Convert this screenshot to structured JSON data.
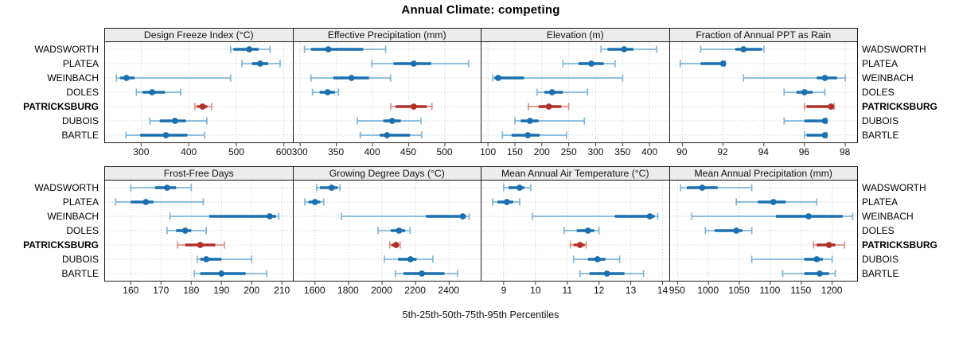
{
  "title": "Annual Climate: competing",
  "caption": "5th-25th-50th-75th-95th Percentiles",
  "stations": [
    "WADSWORTH",
    "PLATEA",
    "WEINBACH",
    "DOLES",
    "PATRICKSBURG",
    "DUBOIS",
    "BARTLE"
  ],
  "highlighted_station": "PATRICKSBURG",
  "colors": {
    "normal_dark": "#1a6faf",
    "normal_light": "#7eb6d9",
    "highlight_dark": "#b03028",
    "highlight_light": "#dd9089",
    "strip_bg": "#ececec",
    "panel_border": "#1a1a1a",
    "grid": "#c6c6c6"
  },
  "chart_data": {
    "type": "trellis-percentile-dotplot",
    "percentiles": [
      5,
      25,
      50,
      75,
      95
    ],
    "legend_note": "dot = 50th percentile, thick bar = 25th-75th, thin whisker with caps = 5th-95th",
    "grid": "dotted",
    "layout": {
      "rows": 2,
      "cols": 4
    },
    "panels": [
      {
        "title": "Design Freeze Index (°C)",
        "row": 0,
        "col": 0,
        "xlim": [
          224,
          618
        ],
        "ticks": [
          300,
          400,
          500,
          600
        ],
        "values": {
          "WADSWORTH": [
            488,
            494,
            527,
            547,
            571
          ],
          "PLATEA": [
            512,
            533,
            550,
            567,
            592
          ],
          "WEINBACH": [
            248,
            256,
            269,
            286,
            488
          ],
          "DOLES": [
            290,
            303,
            323,
            350,
            383
          ],
          "PATRICKSBURG": [
            413,
            417,
            429,
            439,
            448
          ],
          "DUBOIS": [
            318,
            339,
            371,
            394,
            438
          ],
          "BARTLE": [
            268,
            298,
            352,
            397,
            433
          ]
        }
      },
      {
        "title": "Effective Precipitation (mm)",
        "row": 0,
        "col": 1,
        "xlim": [
          291,
          550
        ],
        "ticks": [
          300,
          350,
          400,
          450,
          500
        ],
        "values": {
          "WADSWORTH": [
            306,
            315,
            339,
            387,
            418
          ],
          "PLATEA": [
            399,
            429,
            457,
            481,
            533
          ],
          "WEINBACH": [
            315,
            346,
            371,
            395,
            425
          ],
          "DOLES": [
            317,
            327,
            338,
            348,
            353
          ],
          "PATRICKSBURG": [
            425,
            432,
            457,
            475,
            482
          ],
          "DUBOIS": [
            379,
            415,
            427,
            439,
            467
          ],
          "BARTLE": [
            383,
            410,
            420,
            452,
            468
          ]
        }
      },
      {
        "title": "Elevation (m)",
        "row": 0,
        "col": 2,
        "xlim": [
          88,
          436
        ],
        "ticks": [
          100,
          150,
          200,
          250,
          300,
          350,
          400
        ],
        "values": {
          "WADSWORTH": [
            310,
            322,
            353,
            370,
            413
          ],
          "PLATEA": [
            239,
            268,
            292,
            315,
            336
          ],
          "WEINBACH": [
            109,
            112,
            119,
            167,
            350
          ],
          "DOLES": [
            191,
            205,
            219,
            239,
            285
          ],
          "PATRICKSBURG": [
            175,
            194,
            213,
            236,
            250
          ],
          "DUBOIS": [
            150,
            161,
            178,
            194,
            279
          ],
          "BARTLE": [
            127,
            144,
            174,
            196,
            246
          ]
        }
      },
      {
        "title": "Fraction of Annual PPT as Rain",
        "row": 0,
        "col": 3,
        "xlim": [
          89.4,
          98.6
        ],
        "ticks": [
          90,
          92,
          94,
          96,
          98
        ],
        "values": {
          "WADSWORTH": [
            90.9,
            92.6,
            93.0,
            93.9,
            94.0
          ],
          "PLATEA": [
            89.9,
            90.9,
            92.0,
            92.0,
            92.1
          ],
          "WEINBACH": [
            93.0,
            96.6,
            97.0,
            97.6,
            98.0
          ],
          "DOLES": [
            95.0,
            95.6,
            96.0,
            96.4,
            97.0
          ],
          "PATRICKSBURG": [
            96.0,
            96.1,
            97.3,
            97.4,
            97.45
          ],
          "DUBOIS": [
            95.0,
            96.0,
            97.0,
            97.05,
            97.1
          ],
          "BARTLE": [
            96.0,
            96.1,
            97.0,
            97.05,
            97.1
          ]
        }
      },
      {
        "title": "Frost-Free Days",
        "row": 1,
        "col": 0,
        "xlim": [
          151.5,
          213.5
        ],
        "ticks": [
          160,
          170,
          180,
          190,
          200,
          210
        ],
        "values": {
          "WADSWORTH": [
            160,
            168,
            172,
            175,
            180
          ],
          "PLATEA": [
            155,
            160,
            165,
            167.5,
            184
          ],
          "WEINBACH": [
            173,
            186,
            206,
            208,
            209
          ],
          "DOLES": [
            172,
            175,
            178,
            180,
            185
          ],
          "PATRICKSBURG": [
            175.5,
            178,
            183,
            188,
            191
          ],
          "DUBOIS": [
            182,
            183,
            185,
            190,
            200
          ],
          "BARTLE": [
            181,
            183,
            190,
            198,
            205
          ]
        }
      },
      {
        "title": "Growing Degree Days (°C)",
        "row": 1,
        "col": 1,
        "xlim": [
          1473,
          2591
        ],
        "ticks": [
          1600,
          1800,
          2000,
          2200,
          2400
        ],
        "values": {
          "WADSWORTH": [
            1610,
            1630,
            1700,
            1735,
            1750
          ],
          "PLATEA": [
            1540,
            1562,
            1600,
            1632,
            1652
          ],
          "WEINBACH": [
            1758,
            2262,
            2482,
            2500,
            2520
          ],
          "DOLES": [
            1976,
            2052,
            2102,
            2138,
            2168
          ],
          "PATRICKSBURG": [
            2046,
            2056,
            2084,
            2100,
            2108
          ],
          "DUBOIS": [
            2014,
            2096,
            2170,
            2206,
            2304
          ],
          "BARTLE": [
            2080,
            2128,
            2238,
            2372,
            2450
          ]
        }
      },
      {
        "title": "Mean Annual Air Temperature (°C)",
        "row": 1,
        "col": 2,
        "xlim": [
          8.3,
          14.2
        ],
        "ticks": [
          9,
          10,
          11,
          12,
          13,
          14
        ],
        "values": {
          "WADSWORTH": [
            9.0,
            9.15,
            9.5,
            9.65,
            9.85
          ],
          "PLATEA": [
            8.65,
            8.8,
            9.1,
            9.3,
            9.5
          ],
          "WEINBACH": [
            9.9,
            12.5,
            13.6,
            13.75,
            13.85
          ],
          "DOLES": [
            10.9,
            11.3,
            11.65,
            11.85,
            12.0
          ],
          "PATRICKSBURG": [
            11.1,
            11.2,
            11.4,
            11.55,
            11.6
          ],
          "DUBOIS": [
            11.2,
            11.65,
            11.95,
            12.2,
            12.65
          ],
          "BARTLE": [
            11.4,
            11.7,
            12.25,
            12.8,
            13.4
          ]
        }
      },
      {
        "title": "Mean Annual Precipitation (mm)",
        "row": 1,
        "col": 3,
        "xlim": [
          938,
          1241
        ],
        "ticks": [
          950,
          1000,
          1050,
          1100,
          1150,
          1200
        ],
        "values": {
          "WADSWORTH": [
            955,
            965,
            990,
            1015,
            1070
          ],
          "PLATEA": [
            1045,
            1080,
            1105,
            1125,
            1175
          ],
          "WEINBACH": [
            973,
            1109,
            1162,
            1217,
            1233
          ],
          "DOLES": [
            995,
            1010,
            1045,
            1055,
            1070
          ],
          "PATRICKSBURG": [
            1170,
            1175,
            1195,
            1205,
            1220
          ],
          "DUBOIS": [
            1070,
            1155,
            1175,
            1185,
            1200
          ],
          "BARTLE": [
            1120,
            1155,
            1180,
            1195,
            1205
          ]
        }
      }
    ]
  }
}
